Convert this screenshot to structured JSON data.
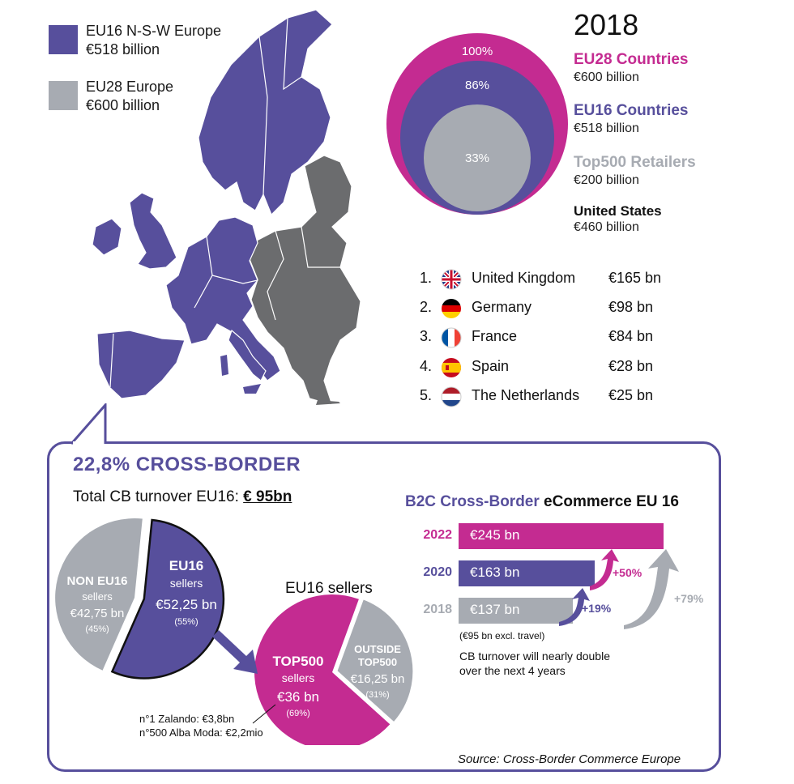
{
  "legend": [
    {
      "label": "EU16 N-S-W Europe",
      "value": "€518 billion",
      "color": "#574f9c"
    },
    {
      "label": "EU28 Europe",
      "value": "€600 billion",
      "color": "#a7abb2"
    }
  ],
  "year": "2018",
  "circles": {
    "labels": [
      "100%",
      "86%",
      "33%"
    ],
    "colors": [
      "#c42b91",
      "#574f9c",
      "#a7abb2"
    ]
  },
  "categories": [
    {
      "name": "EU28 Countries",
      "value": "€600 billion",
      "color": "#c42b91"
    },
    {
      "name": "EU16 Countries",
      "value": "€518 billion",
      "color": "#574f9c"
    },
    {
      "name": "Top500 Retailers",
      "value": "€200 billion",
      "color": "#a7abb2"
    },
    {
      "name": "United States",
      "value": "€460 billion",
      "color": "#111111"
    }
  ],
  "ranking": [
    {
      "rank": "1.",
      "country": "United Kingdom",
      "value": "€165 bn",
      "flag": "uk-flag-icon"
    },
    {
      "rank": "2.",
      "country": "Germany",
      "value": "€98 bn",
      "flag": "germany-flag-icon"
    },
    {
      "rank": "3.",
      "country": "France",
      "value": "€84 bn",
      "flag": "france-flag-icon"
    },
    {
      "rank": "4.",
      "country": "Spain",
      "value": "€28 bn",
      "flag": "spain-flag-icon"
    },
    {
      "rank": "5.",
      "country": "The Netherlands",
      "value": "€25 bn",
      "flag": "netherlands-flag-icon"
    }
  ],
  "crossborder": {
    "title": "22,8% CROSS-BORDER",
    "total_label": "Total CB turnover EU16: ",
    "total_value": "€ 95bn",
    "sellers_title": "EU16 sellers",
    "notes": [
      "n°1 Zalando: €3,8bn",
      "n°500 Alba Moda: €2,2mio"
    ]
  },
  "bars_title": {
    "part1": "B2C Cross-Border",
    "part2": " eCommerce EU 16"
  },
  "bar_note": "(€95 bn excl. travel)",
  "bar_footnote_1": "CB turnover will nearly double",
  "bar_footnote_2": "over the next 4 years",
  "source": "Source: Cross-Border Commerce Europe",
  "chart_data": [
    {
      "type": "pie",
      "title": "Total CB turnover EU16: € 95bn",
      "slices": [
        {
          "label": "EU16 sellers",
          "value": 52.25,
          "value_label": "€52,25 bn",
          "pct": "(55%)",
          "color": "#574f9c"
        },
        {
          "label": "NON EU16 sellers",
          "value": 42.75,
          "value_label": "€42,75 bn",
          "pct": "(45%)",
          "color": "#a7abb2"
        }
      ]
    },
    {
      "type": "pie",
      "title": "EU16 sellers",
      "slices": [
        {
          "label": "TOP500 sellers",
          "value": 36,
          "value_label": "€36 bn",
          "pct": "(69%)",
          "color": "#c42b91"
        },
        {
          "label": "OUTSIDE TOP500",
          "value": 16.25,
          "value_label": "€16,25 bn",
          "pct": "(31%)",
          "color": "#a7abb2"
        }
      ]
    },
    {
      "type": "bar",
      "title": "B2C Cross-Border eCommerce EU 16",
      "categories": [
        "2022",
        "2020",
        "2018"
      ],
      "values": [
        245,
        163,
        137
      ],
      "value_labels": [
        "€245 bn",
        "€163 bn",
        "€137 bn"
      ],
      "colors": [
        "#c42b91",
        "#574f9c",
        "#a7abb2"
      ],
      "growth": [
        {
          "label": "+19%",
          "color": "#574f9c"
        },
        {
          "label": "+50%",
          "color": "#c42b91"
        },
        {
          "label": "+79%",
          "color": "#a7abb2"
        }
      ]
    }
  ]
}
